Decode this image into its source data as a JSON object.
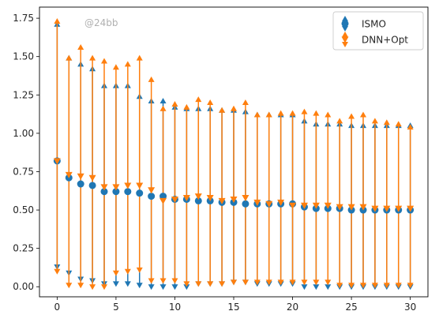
{
  "watermark": "@24bb",
  "chart_data": {
    "type": "scatter",
    "title": "",
    "xlabel": "",
    "ylabel": "",
    "xlim": [
      -1.5,
      31.5
    ],
    "ylim": [
      -0.0656,
      1.8225
    ],
    "x_ticks": [
      0,
      5,
      10,
      15,
      20,
      25,
      30
    ],
    "y_ticks": [
      0.0,
      0.25,
      0.5,
      0.75,
      1.0,
      1.25,
      1.5,
      1.75
    ],
    "grid": false,
    "legend_position": "top-right",
    "series": [
      {
        "name": "ISMO",
        "color": "#1f77b4",
        "marker": "circle",
        "x": [
          0,
          1,
          2,
          3,
          4,
          5,
          6,
          7,
          8,
          9,
          10,
          11,
          12,
          13,
          14,
          15,
          16,
          17,
          18,
          19,
          20,
          21,
          22,
          23,
          24,
          25,
          26,
          27,
          28,
          29,
          30
        ],
        "y": [
          0.82,
          0.71,
          0.67,
          0.66,
          0.62,
          0.62,
          0.62,
          0.61,
          0.59,
          0.59,
          0.57,
          0.57,
          0.56,
          0.56,
          0.55,
          0.55,
          0.54,
          0.54,
          0.54,
          0.54,
          0.54,
          0.52,
          0.51,
          0.51,
          0.51,
          0.5,
          0.5,
          0.5,
          0.5,
          0.5,
          0.5
        ],
        "y_low": [
          0.13,
          0.09,
          0.05,
          0.04,
          0.02,
          0.02,
          0.02,
          0.01,
          0.0,
          0.0,
          0.0,
          0.0,
          0.02,
          0.02,
          0.02,
          0.03,
          0.03,
          0.02,
          0.02,
          0.02,
          0.02,
          0.0,
          0.0,
          0.0,
          0.0,
          0.0,
          0.0,
          0.0,
          0.0,
          0.0,
          0.0
        ],
        "y_high": [
          1.71,
          1.49,
          1.45,
          1.42,
          1.31,
          1.31,
          1.31,
          1.24,
          1.21,
          1.21,
          1.17,
          1.16,
          1.16,
          1.16,
          1.15,
          1.15,
          1.14,
          1.12,
          1.12,
          1.12,
          1.12,
          1.08,
          1.06,
          1.06,
          1.06,
          1.05,
          1.05,
          1.05,
          1.05,
          1.05,
          1.05
        ]
      },
      {
        "name": "DNN+Opt",
        "color": "#ff7f0e",
        "marker": "triangle-down",
        "x": [
          0,
          1,
          2,
          3,
          4,
          5,
          6,
          7,
          8,
          9,
          10,
          11,
          12,
          13,
          14,
          15,
          16,
          17,
          18,
          19,
          20,
          21,
          22,
          23,
          24,
          25,
          26,
          27,
          28,
          29,
          30
        ],
        "y": [
          0.82,
          0.73,
          0.72,
          0.71,
          0.65,
          0.65,
          0.66,
          0.66,
          0.63,
          0.56,
          0.57,
          0.58,
          0.59,
          0.58,
          0.56,
          0.57,
          0.58,
          0.55,
          0.54,
          0.55,
          0.53,
          0.53,
          0.53,
          0.53,
          0.52,
          0.52,
          0.52,
          0.51,
          0.51,
          0.51,
          0.51
        ],
        "y_low": [
          0.1,
          0.01,
          0.01,
          0.0,
          0.0,
          0.09,
          0.1,
          0.11,
          0.04,
          0.04,
          0.04,
          0.02,
          0.02,
          0.02,
          0.02,
          0.03,
          0.03,
          0.03,
          0.03,
          0.03,
          0.03,
          0.03,
          0.03,
          0.03,
          0.01,
          0.01,
          0.01,
          0.01,
          0.01,
          0.01,
          0.01
        ],
        "y_high": [
          1.73,
          1.49,
          1.56,
          1.49,
          1.47,
          1.43,
          1.45,
          1.49,
          1.35,
          1.16,
          1.19,
          1.17,
          1.22,
          1.2,
          1.15,
          1.16,
          1.2,
          1.12,
          1.12,
          1.13,
          1.13,
          1.14,
          1.13,
          1.12,
          1.08,
          1.11,
          1.12,
          1.08,
          1.07,
          1.06,
          1.04
        ]
      }
    ]
  }
}
